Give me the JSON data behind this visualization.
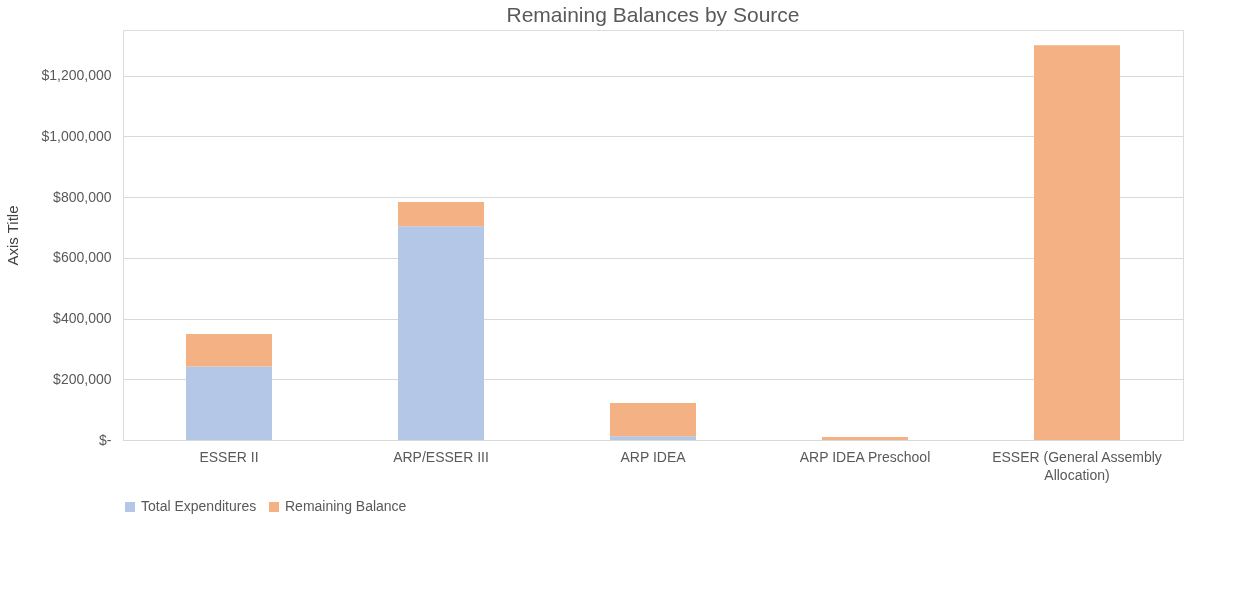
{
  "chart_data": {
    "type": "bar",
    "title": "Remaining Balances by Source",
    "ylabel": "Axis Title",
    "categories": [
      "ESSER II",
      "ARP/ESSER III",
      "ARP IDEA",
      "ARP IDEA Preschool",
      "ESSER (General Assembly Allocation)"
    ],
    "series": [
      {
        "name": "Total Expenditures",
        "color": "#b4c7e7",
        "values": [
          242000,
          704000,
          12000,
          0,
          0
        ]
      },
      {
        "name": "Remaining Balance",
        "color": "#f4b183",
        "values": [
          107000,
          80000,
          110000,
          10000,
          1300000
        ]
      }
    ],
    "stacked": true,
    "ylim": [
      0,
      1350000
    ],
    "yticks": [
      {
        "value": 0,
        "label": "$-"
      },
      {
        "value": 200000,
        "label": "$200,000"
      },
      {
        "value": 400000,
        "label": "$400,000"
      },
      {
        "value": 600000,
        "label": "$600,000"
      },
      {
        "value": 800000,
        "label": "$800,000"
      },
      {
        "value": 1000000,
        "label": "$1,000,000"
      },
      {
        "value": 1200000,
        "label": "$1,200,000"
      }
    ],
    "grid": "y",
    "legend": "bottom"
  }
}
